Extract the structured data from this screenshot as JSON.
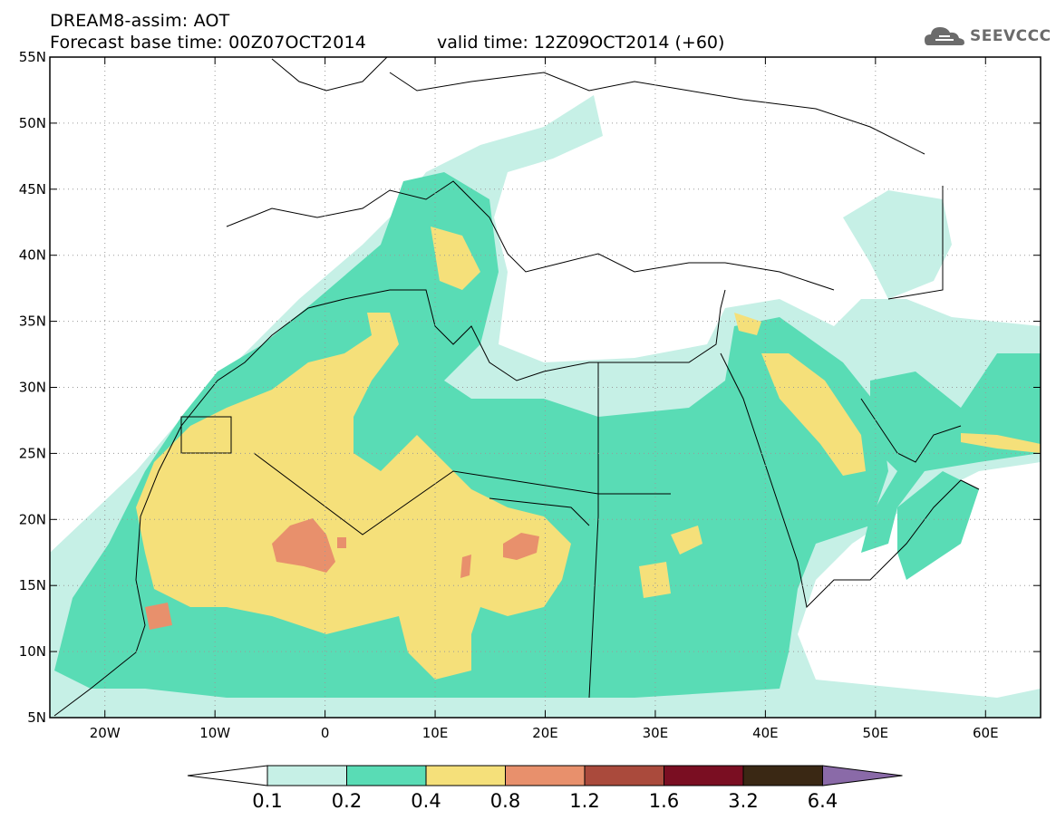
{
  "header": {
    "title": "DREAM8-assim: AOT",
    "base_time": "Forecast base time: 00Z07OCT2014",
    "valid_time": "valid time: 12Z09OCT2014 (+60)"
  },
  "logo": {
    "text": "SEEVCCC",
    "icon": "cloud-icon"
  },
  "map": {
    "lon_range": [
      -25,
      65
    ],
    "lat_range": [
      5,
      55
    ],
    "lat_ticks": [
      "5N",
      "10N",
      "15N",
      "20N",
      "25N",
      "30N",
      "35N",
      "40N",
      "45N",
      "50N",
      "55N"
    ],
    "lon_ticks": [
      "20W",
      "10W",
      "0",
      "10E",
      "20E",
      "30E",
      "40E",
      "50E",
      "60E"
    ],
    "gridlines": "dotted"
  },
  "colorbar": {
    "labels": [
      "0.1",
      "0.2",
      "0.4",
      "0.8",
      "1.2",
      "1.6",
      "3.2",
      "6.4"
    ],
    "colors": [
      "#ffffff",
      "#c6f0e6",
      "#59dcb5",
      "#f5e07a",
      "#e8906c",
      "#aa4a3c",
      "#7a0e22",
      "#3a2814",
      "#8a6aa8"
    ]
  }
}
